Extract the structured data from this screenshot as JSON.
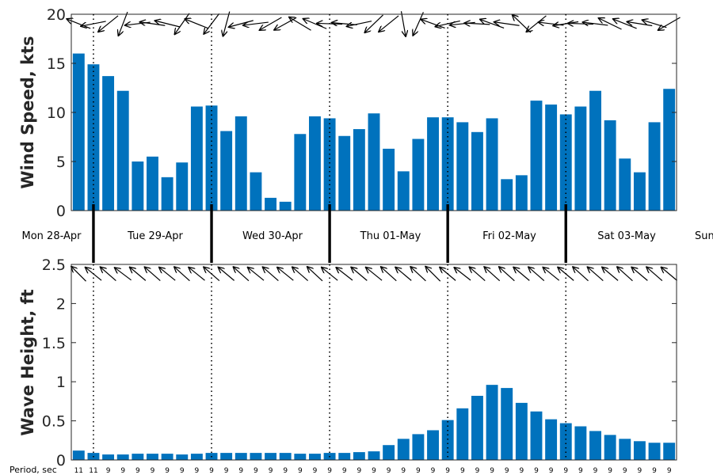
{
  "colors": {
    "bar": "#0072bd",
    "axis": "#262626",
    "marker": "#000000"
  },
  "day_labels": [
    "Mon 28-Apr",
    "Tue 29-Apr",
    "Wed 30-Apr",
    "Thu 01-May",
    "Fri 02-May",
    "Sat 03-May",
    "Sun"
  ],
  "period_title": "Period, sec",
  "chart_data": [
    {
      "type": "bar",
      "ylabel": "Wind Speed, kts",
      "ylim": [
        0,
        20
      ],
      "yticks": [
        0,
        5,
        10,
        15,
        20
      ],
      "grid": false,
      "values": [
        16.0,
        14.9,
        13.7,
        12.2,
        5.0,
        5.5,
        3.4,
        4.9,
        10.6,
        10.7,
        8.1,
        9.6,
        3.9,
        1.3,
        0.9,
        7.8,
        9.6,
        9.4,
        7.6,
        8.3,
        9.9,
        6.3,
        4.0,
        7.3,
        9.5,
        9.5,
        9.0,
        8.0,
        9.4,
        3.2,
        3.6,
        11.2,
        10.8,
        9.8,
        10.6,
        12.2,
        9.2,
        5.3,
        3.9,
        9.0,
        12.4
      ],
      "direction_arrows_deg": [
        158,
        191,
        219,
        249,
        187,
        172,
        166,
        235,
        158,
        233,
        255,
        195,
        187,
        210,
        209,
        149,
        157,
        178,
        175,
        192,
        224,
        219,
        280,
        246,
        160,
        193,
        186,
        177,
        160,
        172,
        136,
        219,
        173,
        189,
        178,
        173,
        154,
        158,
        171,
        163,
        210
      ]
    },
    {
      "type": "bar",
      "ylabel": "Wave Height, ft",
      "ylim": [
        0,
        2.5
      ],
      "yticks": [
        0,
        0.5,
        1,
        1.5,
        2,
        2.5
      ],
      "grid": false,
      "values": [
        0.12,
        0.09,
        0.07,
        0.07,
        0.08,
        0.08,
        0.08,
        0.07,
        0.08,
        0.09,
        0.09,
        0.09,
        0.09,
        0.09,
        0.09,
        0.08,
        0.08,
        0.09,
        0.09,
        0.1,
        0.11,
        0.19,
        0.27,
        0.33,
        0.38,
        0.51,
        0.66,
        0.82,
        0.96,
        0.92,
        0.73,
        0.62,
        0.52,
        0.47,
        0.43,
        0.37,
        0.32,
        0.27,
        0.24,
        0.22,
        0.22
      ],
      "period_sec": [
        "11",
        "11",
        "9",
        "9",
        "9",
        "9",
        "9",
        "9",
        "9",
        "9",
        "9",
        "9",
        "9",
        "9",
        "9",
        "9",
        "9",
        "9",
        "9",
        "9",
        "9",
        "9",
        "9",
        "9",
        "9",
        "9",
        "9",
        "9",
        "9",
        "9",
        "9",
        "9",
        "9",
        "9",
        "9",
        "9",
        "9",
        "9",
        "9",
        "9",
        "9"
      ],
      "direction_arrows_deg": [
        135,
        141,
        139,
        143,
        140,
        139,
        141,
        138,
        141,
        139,
        140,
        138,
        141,
        139,
        141,
        139,
        137,
        141,
        142,
        140,
        141,
        138,
        140,
        137,
        135,
        140,
        142,
        139,
        138,
        138,
        140,
        139,
        141,
        140,
        138,
        139,
        140,
        138,
        140,
        139,
        140
      ]
    }
  ]
}
